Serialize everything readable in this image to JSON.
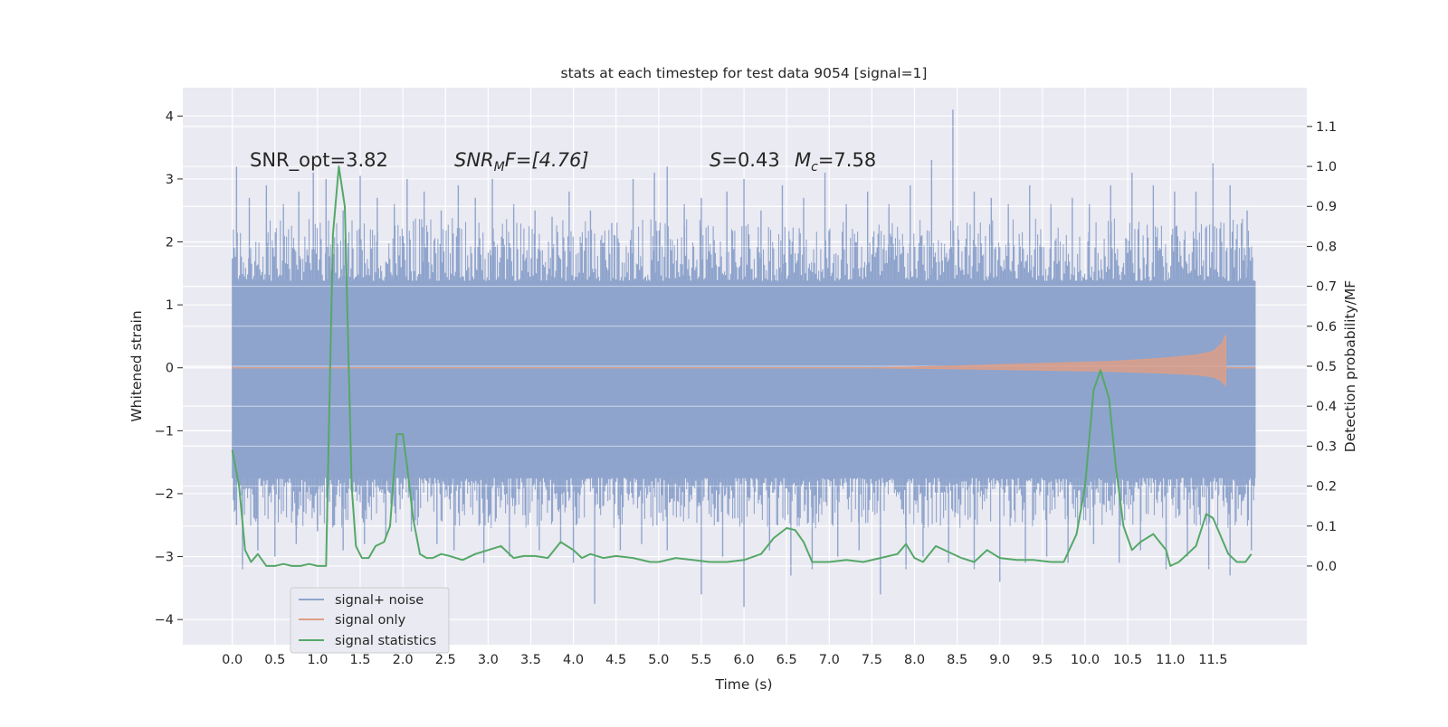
{
  "chart_data": {
    "type": "line",
    "title": "stats at each timestep for test data 9054 [signal=1]",
    "xlabel": "Time (s)",
    "ylabel_left": "Whitened strain",
    "ylabel_right": "Detection probability/MF",
    "xlim": [
      -0.58,
      12.6
    ],
    "ylim_left": [
      -4.4,
      4.45
    ],
    "ylim_right": [
      -0.197,
      1.197
    ],
    "x_ticks": [
      "0.0",
      "0.5",
      "1.0",
      "1.5",
      "2.0",
      "2.5",
      "3.0",
      "3.5",
      "4.0",
      "4.5",
      "5.0",
      "5.5",
      "6.0",
      "6.5",
      "7.0",
      "7.5",
      "8.0",
      "8.5",
      "9.0",
      "9.5",
      "10.0",
      "10.5",
      "11.0",
      "11.5"
    ],
    "y_ticks_left": [
      "4",
      "3",
      "2",
      "1",
      "0",
      "−1",
      "−2",
      "−3",
      "−4"
    ],
    "y_ticks_right": [
      "1.1",
      "1.0",
      "0.9",
      "0.8",
      "0.7",
      "0.6",
      "0.5",
      "0.4",
      "0.3",
      "0.2",
      "0.1",
      "0.0"
    ],
    "grid": true,
    "legend": {
      "position": "lower-left",
      "entries": [
        {
          "label": "signal+ noise",
          "color": "#8fa4cc"
        },
        {
          "label": "signal only",
          "color": "#dd9f87"
        },
        {
          "label": "signal statistics",
          "color": "#55a868"
        }
      ]
    },
    "annotations": {
      "snr_opt": "SNR_opt=3.82",
      "snr_mf_main": "SNR",
      "snr_mf_sub": "M",
      "snr_mf_rest": "F=[4.76]",
      "s_label": "S",
      "s_value": "=0.43",
      "mc_main": "M",
      "mc_sub": "c",
      "mc_value": "=7.58"
    },
    "signal_noise": {
      "t_start": 0.0,
      "t_end": 12.0,
      "core_band": [
        -1.75,
        1.38
      ],
      "peaks_above": [
        {
          "t": 0.05,
          "v": 3.2
        },
        {
          "t": 0.2,
          "v": 2.7
        },
        {
          "t": 0.4,
          "v": 2.9
        },
        {
          "t": 0.6,
          "v": 2.6
        },
        {
          "t": 0.78,
          "v": 2.8
        },
        {
          "t": 0.95,
          "v": 3.1
        },
        {
          "t": 1.1,
          "v": 3.0
        },
        {
          "t": 1.3,
          "v": 2.5
        },
        {
          "t": 1.5,
          "v": 3.05
        },
        {
          "t": 1.7,
          "v": 2.7
        },
        {
          "t": 1.9,
          "v": 2.6
        },
        {
          "t": 2.05,
          "v": 3.0
        },
        {
          "t": 2.25,
          "v": 2.8
        },
        {
          "t": 2.45,
          "v": 2.5
        },
        {
          "t": 2.65,
          "v": 2.9
        },
        {
          "t": 2.85,
          "v": 2.7
        },
        {
          "t": 3.05,
          "v": 3.0
        },
        {
          "t": 3.3,
          "v": 2.6
        },
        {
          "t": 3.55,
          "v": 2.5
        },
        {
          "t": 3.75,
          "v": 2.4
        },
        {
          "t": 3.95,
          "v": 2.8
        },
        {
          "t": 4.2,
          "v": 2.5
        },
        {
          "t": 4.45,
          "v": 2.3
        },
        {
          "t": 4.7,
          "v": 3.0
        },
        {
          "t": 4.95,
          "v": 3.1
        },
        {
          "t": 5.1,
          "v": 3.2
        },
        {
          "t": 5.3,
          "v": 2.6
        },
        {
          "t": 5.5,
          "v": 2.7
        },
        {
          "t": 5.8,
          "v": 2.8
        },
        {
          "t": 6.0,
          "v": 3.0
        },
        {
          "t": 6.2,
          "v": 2.5
        },
        {
          "t": 6.45,
          "v": 2.9
        },
        {
          "t": 6.7,
          "v": 2.7
        },
        {
          "t": 6.95,
          "v": 3.1
        },
        {
          "t": 7.2,
          "v": 2.6
        },
        {
          "t": 7.45,
          "v": 2.8
        },
        {
          "t": 7.7,
          "v": 2.6
        },
        {
          "t": 7.95,
          "v": 2.9
        },
        {
          "t": 8.2,
          "v": 3.3
        },
        {
          "t": 8.45,
          "v": 4.1
        },
        {
          "t": 8.7,
          "v": 2.8
        },
        {
          "t": 8.9,
          "v": 2.7
        },
        {
          "t": 9.1,
          "v": 2.6
        },
        {
          "t": 9.35,
          "v": 2.9
        },
        {
          "t": 9.6,
          "v": 2.6
        },
        {
          "t": 9.85,
          "v": 2.7
        },
        {
          "t": 10.05,
          "v": 2.6
        },
        {
          "t": 10.3,
          "v": 2.9
        },
        {
          "t": 10.55,
          "v": 3.1
        },
        {
          "t": 10.8,
          "v": 2.9
        },
        {
          "t": 11.05,
          "v": 2.8
        },
        {
          "t": 11.3,
          "v": 2.8
        },
        {
          "t": 11.5,
          "v": 3.25
        },
        {
          "t": 11.7,
          "v": 2.9
        },
        {
          "t": 11.9,
          "v": 2.5
        }
      ],
      "peaks_below": [
        {
          "t": 0.05,
          "v": -2.5
        },
        {
          "t": 0.12,
          "v": -3.2
        },
        {
          "t": 0.3,
          "v": -2.9
        },
        {
          "t": 0.5,
          "v": -3.0
        },
        {
          "t": 0.75,
          "v": -2.8
        },
        {
          "t": 1.0,
          "v": -2.6
        },
        {
          "t": 1.3,
          "v": -2.9
        },
        {
          "t": 1.55,
          "v": -2.8
        },
        {
          "t": 1.8,
          "v": -2.7
        },
        {
          "t": 2.1,
          "v": -2.6
        },
        {
          "t": 2.4,
          "v": -2.8
        },
        {
          "t": 2.6,
          "v": -2.9
        },
        {
          "t": 2.95,
          "v": -3.1
        },
        {
          "t": 3.25,
          "v": -3.0
        },
        {
          "t": 3.6,
          "v": -2.9
        },
        {
          "t": 3.85,
          "v": -2.8
        },
        {
          "t": 4.0,
          "v": -3.1
        },
        {
          "t": 4.25,
          "v": -3.75
        },
        {
          "t": 4.55,
          "v": -2.9
        },
        {
          "t": 4.8,
          "v": -2.8
        },
        {
          "t": 5.1,
          "v": -2.9
        },
        {
          "t": 5.5,
          "v": -3.6
        },
        {
          "t": 5.75,
          "v": -3.0
        },
        {
          "t": 6.0,
          "v": -3.8
        },
        {
          "t": 6.3,
          "v": -2.9
        },
        {
          "t": 6.55,
          "v": -3.3
        },
        {
          "t": 6.8,
          "v": -3.2
        },
        {
          "t": 7.1,
          "v": -3.0
        },
        {
          "t": 7.35,
          "v": -2.9
        },
        {
          "t": 7.6,
          "v": -3.6
        },
        {
          "t": 7.9,
          "v": -3.2
        },
        {
          "t": 8.1,
          "v": -3.0
        },
        {
          "t": 8.4,
          "v": -3.1
        },
        {
          "t": 8.7,
          "v": -3.2
        },
        {
          "t": 9.0,
          "v": -3.4
        },
        {
          "t": 9.3,
          "v": -3.1
        },
        {
          "t": 9.55,
          "v": -3.0
        },
        {
          "t": 9.8,
          "v": -3.1
        },
        {
          "t": 10.1,
          "v": -2.8
        },
        {
          "t": 10.4,
          "v": -3.1
        },
        {
          "t": 10.65,
          "v": -2.9
        },
        {
          "t": 10.95,
          "v": -3.2
        },
        {
          "t": 11.2,
          "v": -3.0
        },
        {
          "t": 11.45,
          "v": -3.2
        },
        {
          "t": 11.7,
          "v": -3.3
        },
        {
          "t": 11.95,
          "v": -2.9
        }
      ]
    },
    "signal_only": {
      "t_start": 0.0,
      "t_end": 11.65,
      "chirp_start": 7.5,
      "amplitude_envelope": [
        {
          "t": 7.5,
          "a": 0.0
        },
        {
          "t": 8.5,
          "a": 0.03
        },
        {
          "t": 9.5,
          "a": 0.07
        },
        {
          "t": 10.3,
          "a": 0.1
        },
        {
          "t": 10.9,
          "a": 0.15
        },
        {
          "t": 11.3,
          "a": 0.2
        },
        {
          "t": 11.5,
          "a": 0.26
        },
        {
          "t": 11.6,
          "a": 0.38
        },
        {
          "t": 11.65,
          "a": 0.52
        }
      ]
    },
    "signal_statistics": {
      "t": [
        0.0,
        0.08,
        0.15,
        0.22,
        0.3,
        0.4,
        0.5,
        0.6,
        0.7,
        0.8,
        0.9,
        1.0,
        1.1,
        1.18,
        1.25,
        1.32,
        1.4,
        1.45,
        1.52,
        1.6,
        1.68,
        1.78,
        1.85,
        1.93,
        2.0,
        2.05,
        2.12,
        2.2,
        2.28,
        2.35,
        2.45,
        2.55,
        2.7,
        2.85,
        3.0,
        3.15,
        3.3,
        3.42,
        3.55,
        3.7,
        3.85,
        4.0,
        4.1,
        4.2,
        4.35,
        4.5,
        4.7,
        4.9,
        5.0,
        5.2,
        5.4,
        5.6,
        5.8,
        6.0,
        6.2,
        6.35,
        6.5,
        6.6,
        6.7,
        6.8,
        7.0,
        7.2,
        7.4,
        7.6,
        7.8,
        7.9,
        8.0,
        8.1,
        8.25,
        8.4,
        8.55,
        8.7,
        8.85,
        9.0,
        9.2,
        9.4,
        9.6,
        9.75,
        9.9,
        10.0,
        10.1,
        10.18,
        10.28,
        10.36,
        10.45,
        10.55,
        10.65,
        10.8,
        10.95,
        11.0,
        11.1,
        11.2,
        11.3,
        11.42,
        11.5,
        11.58,
        11.68,
        11.78,
        11.88,
        11.95
      ],
      "v": [
        0.29,
        0.2,
        0.04,
        0.01,
        0.03,
        0.0,
        0.0,
        0.005,
        0.0,
        0.0,
        0.005,
        0.0,
        0.0,
        0.83,
        1.0,
        0.9,
        0.2,
        0.05,
        0.02,
        0.02,
        0.05,
        0.06,
        0.1,
        0.33,
        0.33,
        0.25,
        0.12,
        0.03,
        0.02,
        0.02,
        0.03,
        0.025,
        0.015,
        0.03,
        0.04,
        0.05,
        0.02,
        0.025,
        0.025,
        0.02,
        0.06,
        0.04,
        0.02,
        0.03,
        0.02,
        0.025,
        0.02,
        0.01,
        0.01,
        0.02,
        0.015,
        0.01,
        0.01,
        0.015,
        0.03,
        0.07,
        0.095,
        0.09,
        0.06,
        0.01,
        0.01,
        0.015,
        0.01,
        0.02,
        0.03,
        0.055,
        0.02,
        0.01,
        0.05,
        0.035,
        0.02,
        0.01,
        0.04,
        0.02,
        0.015,
        0.015,
        0.01,
        0.01,
        0.08,
        0.2,
        0.44,
        0.49,
        0.42,
        0.25,
        0.1,
        0.04,
        0.06,
        0.08,
        0.04,
        0.0,
        0.01,
        0.03,
        0.05,
        0.13,
        0.12,
        0.08,
        0.03,
        0.01,
        0.01,
        0.03
      ]
    }
  }
}
